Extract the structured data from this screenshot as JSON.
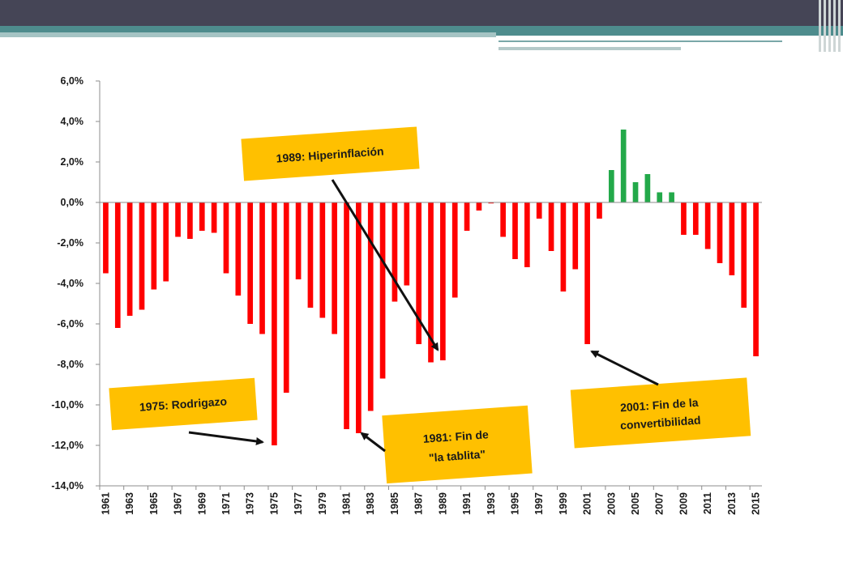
{
  "chart_data": {
    "type": "bar",
    "ylim": [
      -14,
      6
    ],
    "y_ticks": [
      "6,0%",
      "4,0%",
      "2,0%",
      "0,0%",
      "-2,0%",
      "-4,0%",
      "-6,0%",
      "-8,0%",
      "-10,0%",
      "-12,0%",
      "-14,0%"
    ],
    "x_ticks": [
      "1961",
      "1963",
      "1965",
      "1967",
      "1969",
      "1971",
      "1973",
      "1975",
      "1977",
      "1979",
      "1981",
      "1983",
      "1985",
      "1987",
      "1989",
      "1991",
      "1993",
      "1995",
      "1997",
      "1999",
      "2001",
      "2003",
      "2005",
      "2007",
      "2009",
      "2011",
      "2013",
      "2015"
    ],
    "years": [
      1961,
      1962,
      1963,
      1964,
      1965,
      1966,
      1967,
      1968,
      1969,
      1970,
      1971,
      1972,
      1973,
      1974,
      1975,
      1976,
      1977,
      1978,
      1979,
      1980,
      1981,
      1982,
      1983,
      1984,
      1985,
      1986,
      1987,
      1988,
      1989,
      1990,
      1991,
      1992,
      1993,
      1994,
      1995,
      1996,
      1997,
      1998,
      1999,
      2000,
      2001,
      2002,
      2003,
      2004,
      2005,
      2006,
      2007,
      2008,
      2009,
      2010,
      2011,
      2012,
      2013,
      2014,
      2015
    ],
    "values": [
      -3.5,
      -6.2,
      -5.6,
      -5.3,
      -4.3,
      -3.9,
      -1.7,
      -1.8,
      -1.4,
      -1.5,
      -3.5,
      -4.6,
      -6.0,
      -6.5,
      -12.0,
      -9.4,
      -3.8,
      -5.2,
      -5.7,
      -6.5,
      -11.2,
      -11.4,
      -10.3,
      -8.7,
      -4.9,
      -4.1,
      -7.0,
      -7.9,
      -7.8,
      -4.7,
      -1.4,
      -0.4,
      -0.05,
      -1.7,
      -2.8,
      -3.2,
      -0.8,
      -2.4,
      -4.4,
      -3.3,
      -7.0,
      -0.8,
      1.6,
      3.6,
      1.0,
      1.4,
      0.5,
      0.5,
      -1.6,
      -1.6,
      -2.3,
      -3.0,
      -3.6,
      -5.2,
      -7.6
    ],
    "colors": {
      "negative": "#ff0000",
      "positive": "#23a94a"
    },
    "annotations": [
      {
        "text": "1989: Hiperinflación"
      },
      {
        "text": "1975: Rodrigazo"
      },
      {
        "text": "1981: Fin de",
        "text2": "\"la tablita\""
      },
      {
        "text": "2001: Fin de la",
        "text2": "convertibilidad"
      }
    ],
    "grid": false
  },
  "theme": {
    "callout_fill": "#ffc000"
  }
}
